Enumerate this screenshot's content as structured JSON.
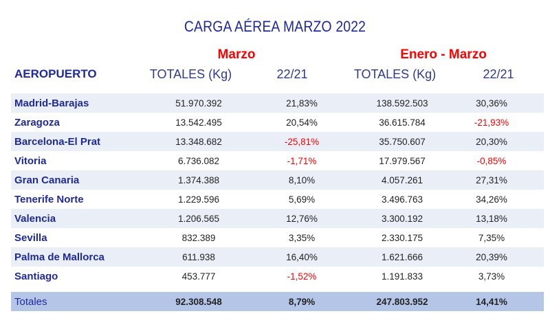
{
  "title": "CARGA AÉREA MARZO 2022",
  "groups": {
    "marzo": "Marzo",
    "enero_marzo": "Enero - Marzo"
  },
  "headers": {
    "aeropuerto": "AEROPUERTO",
    "totales_1": "TOTALES (Kg)",
    "var_1": "22/21",
    "totales_2": "TOTALES (Kg)",
    "var_2": "22/21"
  },
  "colors": {
    "negative": "#ff0000",
    "title": "#1f2a9a",
    "row_alt": "#e9eef7",
    "totals_bg": "#b4c5e7"
  },
  "rows": [
    {
      "name": "Madrid-Barajas",
      "marzo_total": "51.970.392",
      "marzo_var": "21,83%",
      "marzo_var_neg": false,
      "acum_total": "138.592.503",
      "acum_var": "30,36%",
      "acum_var_neg": false
    },
    {
      "name": "Zaragoza",
      "marzo_total": "13.542.495",
      "marzo_var": "20,54%",
      "marzo_var_neg": false,
      "acum_total": "36.615.784",
      "acum_var": "-21,93%",
      "acum_var_neg": true
    },
    {
      "name": "Barcelona-El Prat",
      "marzo_total": "13.348.682",
      "marzo_var": "-25,81%",
      "marzo_var_neg": true,
      "acum_total": "35.750.607",
      "acum_var": "20,30%",
      "acum_var_neg": false
    },
    {
      "name": "Vitoria",
      "marzo_total": "6.736.082",
      "marzo_var": "-1,71%",
      "marzo_var_neg": true,
      "acum_total": "17.979.567",
      "acum_var": "-0,85%",
      "acum_var_neg": true
    },
    {
      "name": "Gran Canaria",
      "marzo_total": "1.374.388",
      "marzo_var": "8,10%",
      "marzo_var_neg": false,
      "acum_total": "4.057.261",
      "acum_var": "27,31%",
      "acum_var_neg": false
    },
    {
      "name": "Tenerife Norte",
      "marzo_total": "1.229.596",
      "marzo_var": "5,69%",
      "marzo_var_neg": false,
      "acum_total": "3.496.763",
      "acum_var": "34,26%",
      "acum_var_neg": false
    },
    {
      "name": "Valencia",
      "marzo_total": "1.206.565",
      "marzo_var": "12,76%",
      "marzo_var_neg": false,
      "acum_total": "3.300.192",
      "acum_var": "13,18%",
      "acum_var_neg": false
    },
    {
      "name": "Sevilla",
      "marzo_total": "832.389",
      "marzo_var": "3,35%",
      "marzo_var_neg": false,
      "acum_total": "2.330.175",
      "acum_var": "7,35%",
      "acum_var_neg": false
    },
    {
      "name": "Palma de Mallorca",
      "marzo_total": "611.938",
      "marzo_var": "16,40%",
      "marzo_var_neg": false,
      "acum_total": "1.621.666",
      "acum_var": "20,39%",
      "acum_var_neg": false
    },
    {
      "name": "Santiago",
      "marzo_total": "453.777",
      "marzo_var": "-1,52%",
      "marzo_var_neg": true,
      "acum_total": "1.191.833",
      "acum_var": "3,73%",
      "acum_var_neg": false
    }
  ],
  "totals": {
    "name": "Totales",
    "marzo_total": "92.308.548",
    "marzo_var": "8,79%",
    "acum_total": "247.803.952",
    "acum_var": "14,41%"
  }
}
